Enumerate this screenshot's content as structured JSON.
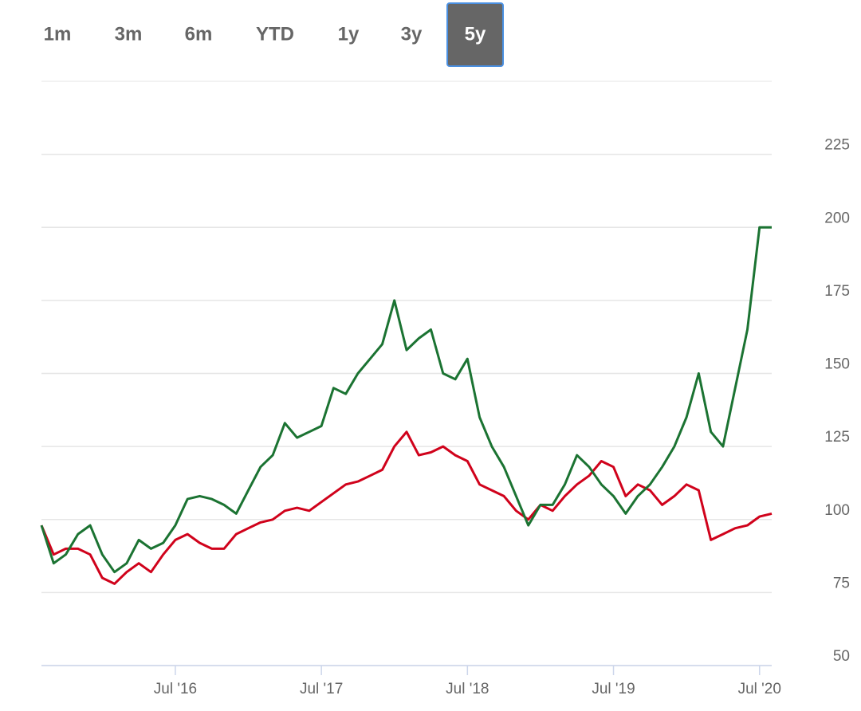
{
  "range_buttons": {
    "labels": [
      "1m",
      "3m",
      "6m",
      "YTD",
      "1y",
      "3y",
      "5y"
    ],
    "selected_index": 6
  },
  "chart_data": {
    "type": "line",
    "x": [
      "2015-08",
      "2015-09",
      "2015-10",
      "2015-11",
      "2015-12",
      "2016-01",
      "2016-02",
      "2016-03",
      "2016-04",
      "2016-05",
      "2016-06",
      "2016-07",
      "2016-08",
      "2016-09",
      "2016-10",
      "2016-11",
      "2016-12",
      "2017-01",
      "2017-02",
      "2017-03",
      "2017-04",
      "2017-05",
      "2017-06",
      "2017-07",
      "2017-08",
      "2017-09",
      "2017-10",
      "2017-11",
      "2017-12",
      "2018-01",
      "2018-02",
      "2018-03",
      "2018-04",
      "2018-05",
      "2018-06",
      "2018-07",
      "2018-08",
      "2018-09",
      "2018-10",
      "2018-11",
      "2018-12",
      "2019-01",
      "2019-02",
      "2019-03",
      "2019-04",
      "2019-05",
      "2019-06",
      "2019-07",
      "2019-08",
      "2019-09",
      "2019-10",
      "2019-11",
      "2019-12",
      "2020-01",
      "2020-02",
      "2020-03",
      "2020-04",
      "2020-05",
      "2020-06",
      "2020-07",
      "2020-08"
    ],
    "series": [
      {
        "color": "#1b7332",
        "values": [
          98,
          85,
          88,
          95,
          98,
          88,
          82,
          85,
          93,
          90,
          92,
          98,
          107,
          108,
          107,
          105,
          102,
          110,
          118,
          122,
          133,
          128,
          130,
          132,
          145,
          143,
          150,
          155,
          160,
          175,
          158,
          162,
          165,
          150,
          148,
          155,
          135,
          125,
          118,
          108,
          98,
          105,
          105,
          112,
          122,
          118,
          112,
          108,
          102,
          108,
          112,
          118,
          125,
          135,
          150,
          130,
          125,
          145,
          165,
          200,
          200
        ]
      },
      {
        "color": "#d0021b",
        "values": [
          98,
          88,
          90,
          90,
          88,
          80,
          78,
          82,
          85,
          82,
          88,
          93,
          95,
          92,
          90,
          90,
          95,
          97,
          99,
          100,
          103,
          104,
          103,
          106,
          109,
          112,
          113,
          115,
          117,
          125,
          130,
          122,
          123,
          125,
          122,
          120,
          112,
          110,
          108,
          103,
          100,
          105,
          103,
          108,
          112,
          115,
          120,
          118,
          108,
          112,
          110,
          105,
          108,
          112,
          110,
          93,
          95,
          97,
          98,
          101,
          102
        ]
      }
    ],
    "xlim": [
      "2015-08",
      "2020-08"
    ],
    "xticks": [
      {
        "value": "2016-07",
        "label": "Jul '16"
      },
      {
        "value": "2017-07",
        "label": "Jul '17"
      },
      {
        "value": "2018-07",
        "label": "Jul '18"
      },
      {
        "value": "2019-07",
        "label": "Jul '19"
      },
      {
        "value": "2020-07",
        "label": "Jul '20"
      }
    ],
    "ylim": [
      50,
      250
    ],
    "yticks": [
      50,
      75,
      100,
      125,
      150,
      175,
      200,
      225
    ],
    "grid": true
  }
}
